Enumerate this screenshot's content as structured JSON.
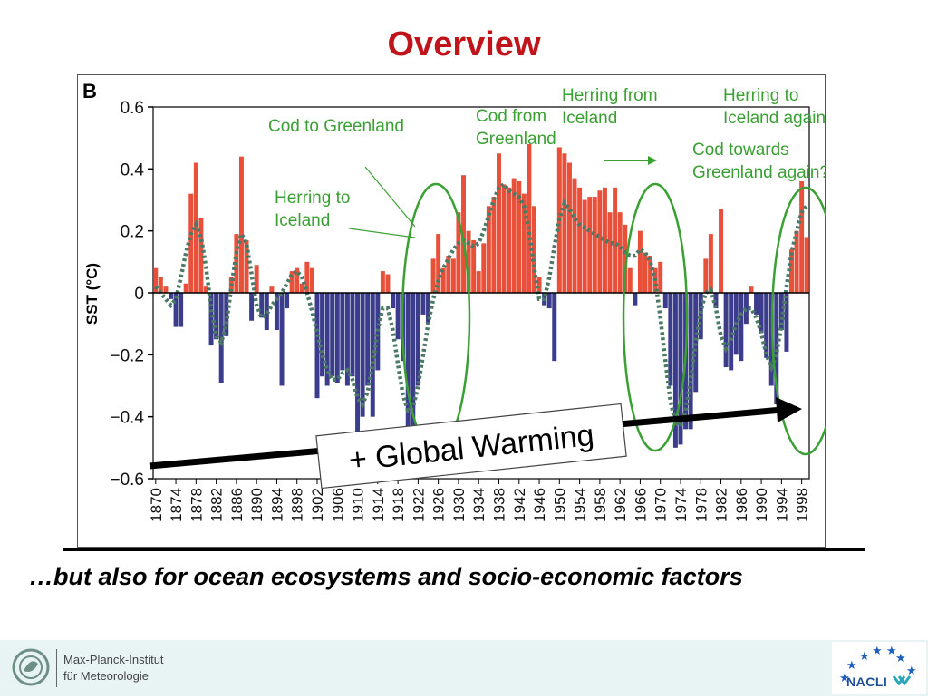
{
  "slide": {
    "title": "Overview",
    "caption": "…but also for ocean ecosystems and socio-economic factors"
  },
  "footer": {
    "institute_line1": "Max-Planck-Institut",
    "institute_line2": "für Meteorologie",
    "partner_logo": "NACLI"
  },
  "colors": {
    "title": "#c0141a",
    "positive_bar": "#e8503a",
    "negative_bar": "#3c3c8c",
    "smooth_line": "#4a7a66",
    "annotation": "#3aa033",
    "arrow": "#000000"
  },
  "chart_data": {
    "type": "bar",
    "panel_label": "B",
    "ylabel": "SST (°C)",
    "ylim": [
      -0.6,
      0.6
    ],
    "yticks": [
      "0.6",
      "0.4",
      "0.2",
      "0",
      "−0.2",
      "−0.4",
      "−0.6"
    ],
    "ytick_values": [
      0.6,
      0.4,
      0.2,
      0,
      -0.2,
      -0.4,
      -0.6
    ],
    "xticks": [
      "1870",
      "1874",
      "1878",
      "1882",
      "1886",
      "1890",
      "1894",
      "1898",
      "1902",
      "1906",
      "1910",
      "1914",
      "1918",
      "1922",
      "1926",
      "1930",
      "1934",
      "1938",
      "1942",
      "1946",
      "1950",
      "1954",
      "1958",
      "1962",
      "1966",
      "1970",
      "1974",
      "1978",
      "1982",
      "1986",
      "1990",
      "1994",
      "1998"
    ],
    "x_start": 1870,
    "x_end": 1999,
    "years": [
      1870,
      1871,
      1872,
      1873,
      1874,
      1875,
      1876,
      1877,
      1878,
      1879,
      1880,
      1881,
      1882,
      1883,
      1884,
      1885,
      1886,
      1887,
      1888,
      1889,
      1890,
      1891,
      1892,
      1893,
      1894,
      1895,
      1896,
      1897,
      1898,
      1899,
      1900,
      1901,
      1902,
      1903,
      1904,
      1905,
      1906,
      1907,
      1908,
      1909,
      1910,
      1911,
      1912,
      1913,
      1914,
      1915,
      1916,
      1917,
      1918,
      1919,
      1920,
      1921,
      1922,
      1923,
      1924,
      1925,
      1926,
      1927,
      1928,
      1929,
      1930,
      1931,
      1932,
      1933,
      1934,
      1935,
      1936,
      1937,
      1938,
      1939,
      1940,
      1941,
      1942,
      1943,
      1944,
      1945,
      1946,
      1947,
      1948,
      1949,
      1950,
      1951,
      1952,
      1953,
      1954,
      1955,
      1956,
      1957,
      1958,
      1959,
      1960,
      1961,
      1962,
      1963,
      1964,
      1965,
      1966,
      1967,
      1968,
      1969,
      1970,
      1971,
      1972,
      1973,
      1974,
      1975,
      1976,
      1977,
      1978,
      1979,
      1980,
      1981,
      1982,
      1983,
      1984,
      1985,
      1986,
      1987,
      1988,
      1989,
      1990,
      1991,
      1992,
      1993,
      1994,
      1995,
      1996,
      1997,
      1998,
      1999
    ],
    "values": [
      0.08,
      0.05,
      0.02,
      -0.02,
      -0.11,
      -0.11,
      0.03,
      0.32,
      0.42,
      0.24,
      0.02,
      -0.17,
      -0.15,
      -0.29,
      -0.14,
      0.05,
      0.19,
      0.44,
      0.17,
      -0.09,
      0.09,
      -0.08,
      -0.12,
      0.02,
      -0.12,
      -0.3,
      -0.05,
      0.07,
      0.08,
      0.03,
      0.1,
      0.08,
      -0.34,
      -0.27,
      -0.3,
      -0.27,
      -0.29,
      -0.25,
      -0.3,
      -0.27,
      -0.45,
      -0.4,
      -0.3,
      -0.4,
      -0.25,
      0.07,
      0.06,
      -0.05,
      -0.15,
      -0.22,
      -0.55,
      -0.59,
      -0.3,
      -0.07,
      -0.1,
      0.11,
      0.19,
      0.08,
      0.12,
      0.11,
      0.26,
      0.38,
      0.2,
      0.17,
      0.07,
      0.16,
      0.28,
      0.31,
      0.45,
      0.35,
      0.34,
      0.37,
      0.36,
      0.32,
      0.48,
      0.28,
      0.05,
      -0.04,
      -0.05,
      -0.22,
      0.47,
      0.45,
      0.42,
      0.37,
      0.34,
      0.3,
      0.31,
      0.31,
      0.33,
      0.34,
      0.26,
      0.34,
      0.26,
      0.22,
      0.08,
      -0.04,
      0.2,
      0.13,
      0.12,
      0.08,
      0.1,
      -0.05,
      -0.3,
      -0.5,
      -0.49,
      -0.44,
      -0.44,
      -0.32,
      -0.15,
      0.11,
      0.19,
      -0.05,
      0.27,
      -0.24,
      -0.25,
      -0.2,
      -0.22,
      -0.1,
      0.02,
      -0.07,
      -0.13,
      -0.21,
      -0.3,
      -0.36,
      -0.12,
      -0.19,
      0.14,
      0.2,
      0.36,
      0.18
    ],
    "smooth": [
      0.02,
      0.0,
      -0.02,
      -0.04,
      -0.02,
      0.05,
      0.13,
      0.19,
      0.22,
      0.18,
      0.08,
      -0.05,
      -0.14,
      -0.16,
      -0.1,
      0.02,
      0.13,
      0.19,
      0.16,
      0.06,
      -0.04,
      -0.08,
      -0.07,
      -0.04,
      -0.02,
      0.0,
      0.03,
      0.06,
      0.07,
      0.05,
      0.0,
      -0.06,
      -0.13,
      -0.2,
      -0.25,
      -0.28,
      -0.28,
      -0.26,
      -0.25,
      -0.28,
      -0.34,
      -0.36,
      -0.32,
      -0.23,
      -0.12,
      -0.05,
      -0.05,
      -0.12,
      -0.23,
      -0.33,
      -0.38,
      -0.37,
      -0.3,
      -0.2,
      -0.1,
      -0.02,
      0.04,
      0.08,
      0.11,
      0.14,
      0.16,
      0.17,
      0.16,
      0.15,
      0.16,
      0.2,
      0.25,
      0.3,
      0.34,
      0.35,
      0.33,
      0.32,
      0.31,
      0.28,
      0.2,
      0.08,
      -0.02,
      -0.02,
      0.05,
      0.15,
      0.24,
      0.29,
      0.27,
      0.24,
      0.22,
      0.21,
      0.2,
      0.19,
      0.18,
      0.17,
      0.16,
      0.16,
      0.15,
      0.13,
      0.12,
      0.12,
      0.14,
      0.13,
      0.1,
      0.04,
      -0.08,
      -0.22,
      -0.35,
      -0.42,
      -0.43,
      -0.38,
      -0.28,
      -0.16,
      -0.06,
      0.0,
      0.01,
      -0.05,
      -0.14,
      -0.18,
      -0.15,
      -0.1,
      -0.07,
      -0.05,
      -0.05,
      -0.08,
      -0.13,
      -0.2,
      -0.24,
      -0.2,
      -0.1,
      0.02,
      0.13,
      0.2,
      0.26,
      0.28
    ],
    "annotations": [
      {
        "text": [
          "Cod to Greenland"
        ]
      },
      {
        "text": [
          "Herring to",
          "Iceland"
        ]
      },
      {
        "text": [
          "Cod from",
          "Greenland"
        ]
      },
      {
        "text": [
          "Herring from",
          "Iceland"
        ]
      },
      {
        "text": [
          "Herring to",
          "Iceland again"
        ]
      },
      {
        "text": [
          "Cod towards",
          "Greenland again?"
        ]
      }
    ],
    "callout": "+ Global Warming"
  }
}
